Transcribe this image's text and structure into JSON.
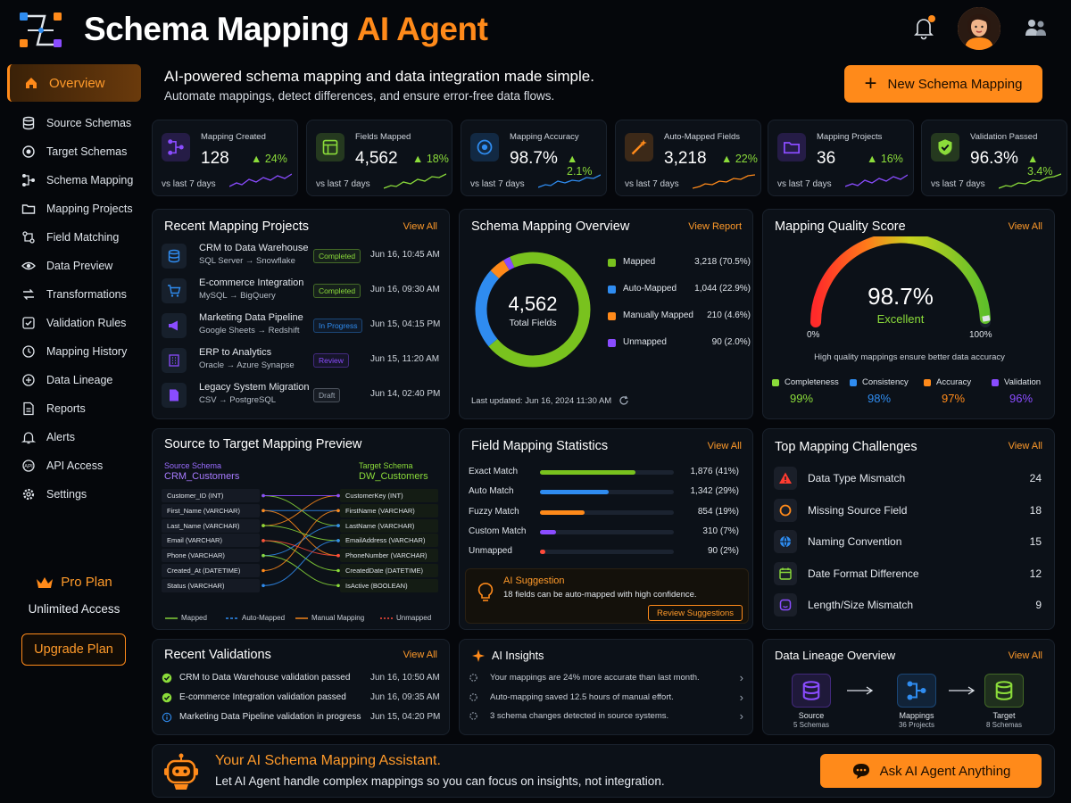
{
  "header": {
    "title_main": "Schema Mapping ",
    "title_accent": "AI Agent",
    "colors": {
      "accent": "#ff8a1a",
      "success": "#8bdc3a",
      "info": "#2f8cf0",
      "purple": "#8a4cff"
    }
  },
  "sidebar": {
    "items": [
      {
        "label": "Overview",
        "icon": "home-icon",
        "active": true
      },
      {
        "label": "Source Schemas",
        "icon": "database-icon"
      },
      {
        "label": "Target Schemas",
        "icon": "target-icon"
      },
      {
        "label": "Schema Mapping",
        "icon": "mapping-icon"
      },
      {
        "label": "Mapping Projects",
        "icon": "folder-icon"
      },
      {
        "label": "Field Matching",
        "icon": "match-icon"
      },
      {
        "label": "Data Preview",
        "icon": "eye-icon"
      },
      {
        "label": "Transformations",
        "icon": "transform-icon"
      },
      {
        "label": "Validation Rules",
        "icon": "check-shield-icon"
      },
      {
        "label": "Mapping History",
        "icon": "history-icon"
      },
      {
        "label": "Data Lineage",
        "icon": "lineage-icon"
      },
      {
        "label": "Reports",
        "icon": "report-icon"
      },
      {
        "label": "Alerts",
        "icon": "bell-icon"
      },
      {
        "label": "API Access",
        "icon": "api-icon"
      },
      {
        "label": "Settings",
        "icon": "gear-icon"
      }
    ],
    "plan_name": "Pro Plan",
    "plan_desc": "Unlimited Access",
    "upgrade_label": "Upgrade Plan"
  },
  "hero": {
    "title": "AI-powered schema mapping and data integration made simple.",
    "subtitle": "Automate mappings, detect differences, and ensure error-free data flows.",
    "new_button": "New Schema Mapping"
  },
  "stats": [
    {
      "label": "Mapping Created",
      "value": "128",
      "delta": "▲ 24%",
      "period": "vs last 7 days",
      "color": "#8a4cff",
      "icon": "mapping-icon"
    },
    {
      "label": "Fields Mapped",
      "value": "4,562",
      "delta": "▲ 18%",
      "period": "vs last 7 days",
      "color": "#8bdc3a",
      "icon": "fields-icon"
    },
    {
      "label": "Mapping Accuracy",
      "value": "98.7%",
      "delta": "▲ 2.1%",
      "period": "vs last 7 days",
      "color": "#2f8cf0",
      "icon": "target-icon"
    },
    {
      "label": "Auto-Mapped Fields",
      "value": "3,218",
      "delta": "▲ 22%",
      "period": "vs last 7 days",
      "color": "#ff8a1a",
      "icon": "magic-wand-icon"
    },
    {
      "label": "Mapping Projects",
      "value": "36",
      "delta": "▲ 16%",
      "period": "vs last 7 days",
      "color": "#8a4cff",
      "icon": "folder-icon"
    },
    {
      "label": "Validation Passed",
      "value": "96.3%",
      "delta": "▲ 3.4%",
      "period": "vs last 7 days",
      "color": "#8bdc3a",
      "icon": "shield-check-icon"
    }
  ],
  "projects": {
    "title": "Recent Mapping Projects",
    "view_all": "View All",
    "items": [
      {
        "name": "CRM to Data Warehouse",
        "path": "SQL Server → Snowflake",
        "status": "Completed",
        "date": "Jun 16, 10:45 AM",
        "color": "#8bdc3a",
        "icon": "database-icon"
      },
      {
        "name": "E-commerce Integration",
        "path": "MySQL → BigQuery",
        "status": "Completed",
        "date": "Jun 16, 09:30 AM",
        "color": "#8bdc3a",
        "icon": "cart-icon"
      },
      {
        "name": "Marketing Data Pipeline",
        "path": "Google Sheets → Redshift",
        "status": "In Progress",
        "date": "Jun 15, 04:15 PM",
        "color": "#2f8cf0",
        "icon": "megaphone-icon"
      },
      {
        "name": "ERP to Analytics",
        "path": "Oracle → Azure Synapse",
        "status": "Review",
        "date": "Jun 15, 11:20 AM",
        "color": "#8a4cff",
        "icon": "building-icon"
      },
      {
        "name": "Legacy System Migration",
        "path": "CSV → PostgreSQL",
        "status": "Draft",
        "date": "Jun 14, 02:40 PM",
        "color": "#9aa4b1",
        "icon": "document-icon"
      }
    ]
  },
  "overview": {
    "title": "Schema Mapping Overview",
    "view_report": "View Report",
    "total": "4,562",
    "total_label": "Total Fields",
    "updated": "Last updated: Jun 16, 2024 11:30 AM",
    "legend": [
      {
        "name": "Mapped",
        "value": "3,218",
        "pct": "(70.5%)",
        "color": "#79c21e"
      },
      {
        "name": "Auto-Mapped",
        "value": "1,044",
        "pct": "(22.9%)",
        "color": "#2f8cf0"
      },
      {
        "name": "Manually Mapped",
        "value": "210",
        "pct": "(4.6%)",
        "color": "#ff8a1a"
      },
      {
        "name": "Unmapped",
        "value": "90",
        "pct": "(2.0%)",
        "color": "#8a4cff"
      }
    ]
  },
  "chart_data": {
    "type": "pie",
    "title": "Schema Mapping Overview",
    "categories": [
      "Mapped",
      "Auto-Mapped",
      "Manually Mapped",
      "Unmapped"
    ],
    "values": [
      3218,
      1044,
      210,
      90
    ],
    "colors": [
      "#79c21e",
      "#2f8cf0",
      "#ff8a1a",
      "#8a4cff"
    ]
  },
  "quality": {
    "title": "Mapping Quality Score",
    "view_all": "View All",
    "score": "98.7%",
    "score_value": 0.987,
    "grade": "Excellent",
    "min": "0%",
    "max": "100%",
    "note": "High quality mappings ensure better data accuracy",
    "metrics": [
      {
        "name": "Completeness",
        "value": "99%",
        "color": "#8bdc3a"
      },
      {
        "name": "Consistency",
        "value": "98%",
        "color": "#2f8cf0"
      },
      {
        "name": "Accuracy",
        "value": "97%",
        "color": "#ff8a1a"
      },
      {
        "name": "Validation",
        "value": "96%",
        "color": "#8a4cff"
      }
    ]
  },
  "preview": {
    "title": "Source to Target Mapping Preview",
    "source_label": "Source Schema",
    "source_name": "CRM_Customers",
    "target_label": "Target Schema",
    "target_name": "DW_Customers",
    "source_fields": [
      "Customer_ID (INT)",
      "First_Name (VARCHAR)",
      "Last_Name (VARCHAR)",
      "Email (VARCHAR)",
      "Phone (VARCHAR)",
      "Created_At (DATETIME)",
      "Status (VARCHAR)"
    ],
    "target_fields": [
      "CustomerKey (INT)",
      "FirstName (VARCHAR)",
      "LastName (VARCHAR)",
      "EmailAddress (VARCHAR)",
      "PhoneNumber (VARCHAR)",
      "CreatedDate (DATETIME)",
      "IsActive (BOOLEAN)"
    ],
    "legend": [
      {
        "name": "Mapped",
        "color": "#8bdc3a"
      },
      {
        "name": "Auto-Mapped",
        "color": "#2f8cf0"
      },
      {
        "name": "Manual Mapping",
        "color": "#ff8a1a"
      },
      {
        "name": "Unmapped",
        "color": "#ff4a3a"
      }
    ]
  },
  "field_stats": {
    "title": "Field Mapping Statistics",
    "view_all": "View All",
    "rows": [
      {
        "name": "Exact Match",
        "value": "1,876",
        "pct": "(41%)",
        "fraction": 0.71,
        "color": "#79c21e"
      },
      {
        "name": "Auto Match",
        "value": "1,342",
        "pct": "(29%)",
        "fraction": 0.51,
        "color": "#2f8cf0"
      },
      {
        "name": "Fuzzy Match",
        "value": "854",
        "pct": "(19%)",
        "fraction": 0.33,
        "color": "#ff8a1a"
      },
      {
        "name": "Custom Match",
        "value": "310",
        "pct": "(7%)",
        "fraction": 0.12,
        "color": "#8a4cff"
      },
      {
        "name": "Unmapped",
        "value": "90",
        "pct": "(2%)",
        "fraction": 0.04,
        "color": "#ff4a3a"
      }
    ],
    "suggestion_title": "AI Suggestion",
    "suggestion_text": "18 fields can be auto-mapped with high confidence.",
    "suggestion_button": "Review Suggestions"
  },
  "challenges": {
    "title": "Top Mapping Challenges",
    "view_all": "View All",
    "items": [
      {
        "name": "Data Type Mismatch",
        "count": "24",
        "color": "#ff3b30",
        "icon": "warning-icon"
      },
      {
        "name": "Missing Source Field",
        "count": "18",
        "color": "#ff8a1a",
        "icon": "circle-icon"
      },
      {
        "name": "Naming Convention",
        "count": "15",
        "color": "#2f8cf0",
        "icon": "globe-icon"
      },
      {
        "name": "Date Format Difference",
        "count": "12",
        "color": "#8bdc3a",
        "icon": "calendar-icon"
      },
      {
        "name": "Length/Size Mismatch",
        "count": "9",
        "color": "#8a4cff",
        "icon": "ruler-icon"
      }
    ]
  },
  "validations": {
    "title": "Recent Validations",
    "view_all": "View All",
    "items": [
      {
        "name": "CRM to Data Warehouse validation passed",
        "date": "Jun 16, 10:50 AM",
        "color": "#8bdc3a",
        "icon": "check-icon"
      },
      {
        "name": "E-commerce Integration validation passed",
        "date": "Jun 16, 09:35 AM",
        "color": "#8bdc3a",
        "icon": "check-icon"
      },
      {
        "name": "Marketing Data Pipeline validation in progress",
        "date": "Jun 15, 04:20 PM",
        "color": "#2f8cf0",
        "icon": "info-icon"
      }
    ]
  },
  "insights": {
    "title": "AI Insights",
    "items": [
      "Your mappings are 24% more accurate than last month.",
      "Auto-mapping saved 12.5 hours of manual effort.",
      "3 schema changes detected in source systems."
    ]
  },
  "lineage": {
    "title": "Data Lineage Overview",
    "view_all": "View All",
    "nodes": [
      {
        "name": "Source",
        "sub": "5 Schemas",
        "color": "#8a4cff",
        "icon": "database-icon"
      },
      {
        "name": "Mappings",
        "sub": "36 Projects",
        "color": "#2f8cf0",
        "icon": "mapping-icon"
      },
      {
        "name": "Target",
        "sub": "8 Schemas",
        "color": "#8bdc3a",
        "icon": "database-icon"
      }
    ]
  },
  "assistant": {
    "title": "Your AI Schema Mapping Assistant.",
    "subtitle": "Let AI Agent handle complex mappings so you can focus on insights, not integration.",
    "button": "Ask AI Agent Anything"
  }
}
